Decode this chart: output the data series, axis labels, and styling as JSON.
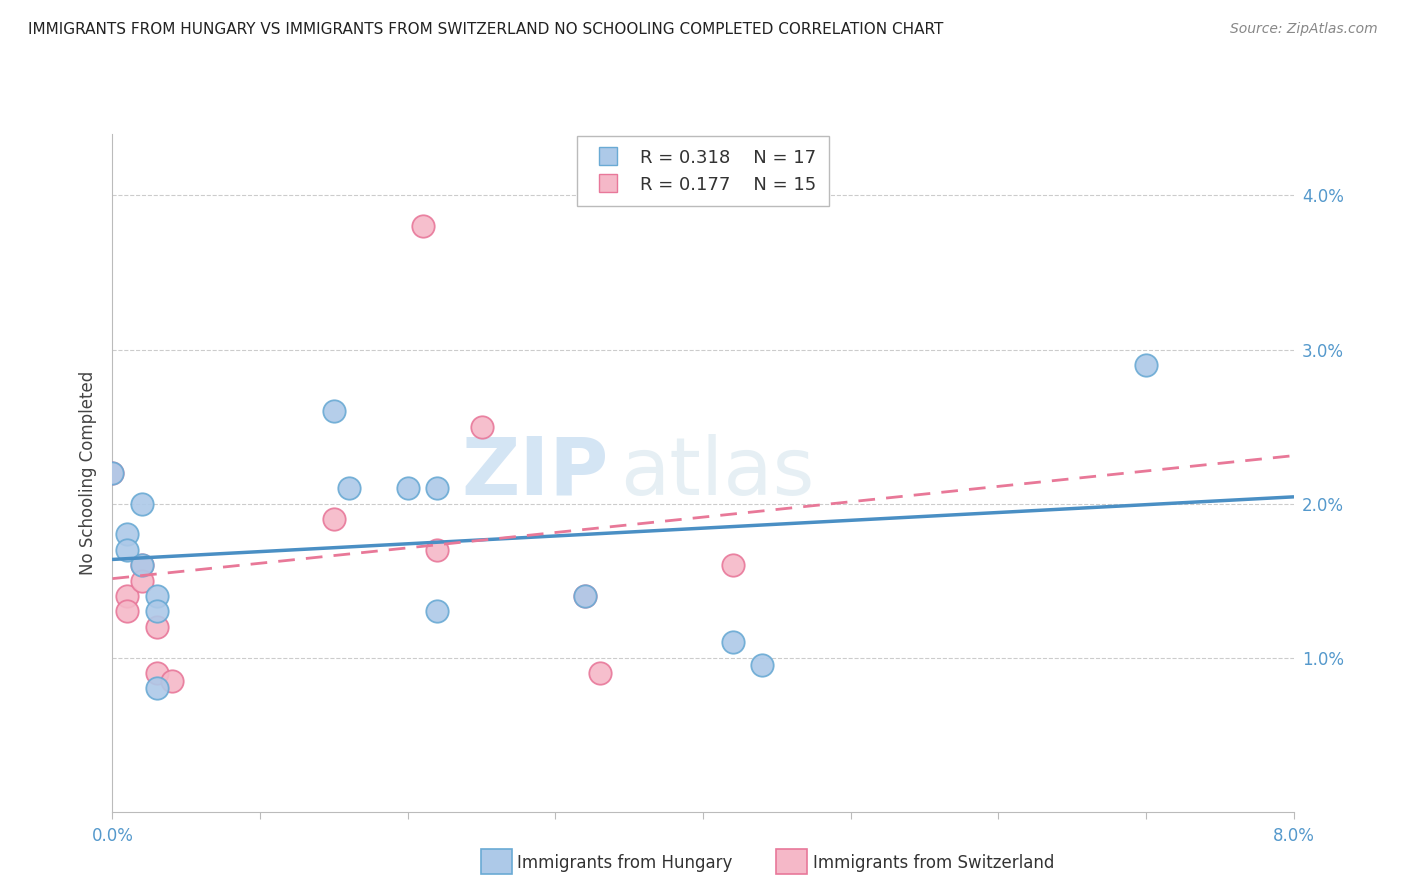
{
  "title": "IMMIGRANTS FROM HUNGARY VS IMMIGRANTS FROM SWITZERLAND NO SCHOOLING COMPLETED CORRELATION CHART",
  "source": "Source: ZipAtlas.com",
  "ylabel": "No Schooling Completed",
  "xmin": 0.0,
  "xmax": 0.08,
  "ymin": 0.0,
  "ymax": 0.044,
  "yticks": [
    0.01,
    0.02,
    0.03,
    0.04
  ],
  "ytick_labels": [
    "1.0%",
    "2.0%",
    "3.0%",
    "4.0%"
  ],
  "hungary_R": 0.318,
  "hungary_N": 17,
  "switzerland_R": 0.177,
  "switzerland_N": 15,
  "hungary_color": "#adc9e8",
  "switzerland_color": "#f5b8c8",
  "hungary_edge_color": "#6aaad4",
  "switzerland_edge_color": "#e8789a",
  "hungary_line_color": "#4a8fc4",
  "switzerland_line_color": "#e87898",
  "watermark_zip": "ZIP",
  "watermark_atlas": "atlas",
  "hungary_x": [
    0.0,
    0.001,
    0.001,
    0.002,
    0.002,
    0.003,
    0.003,
    0.003,
    0.015,
    0.016,
    0.02,
    0.022,
    0.022,
    0.032,
    0.042,
    0.044,
    0.07
  ],
  "hungary_y": [
    0.022,
    0.018,
    0.017,
    0.02,
    0.016,
    0.014,
    0.013,
    0.008,
    0.026,
    0.021,
    0.021,
    0.021,
    0.013,
    0.014,
    0.011,
    0.0095,
    0.029
  ],
  "switzerland_x": [
    0.0,
    0.001,
    0.001,
    0.002,
    0.002,
    0.003,
    0.003,
    0.004,
    0.015,
    0.022,
    0.025,
    0.032,
    0.033,
    0.042,
    0.021
  ],
  "switzerland_y": [
    0.022,
    0.014,
    0.013,
    0.016,
    0.015,
    0.012,
    0.009,
    0.0085,
    0.019,
    0.017,
    0.025,
    0.014,
    0.009,
    0.016,
    0.038
  ]
}
